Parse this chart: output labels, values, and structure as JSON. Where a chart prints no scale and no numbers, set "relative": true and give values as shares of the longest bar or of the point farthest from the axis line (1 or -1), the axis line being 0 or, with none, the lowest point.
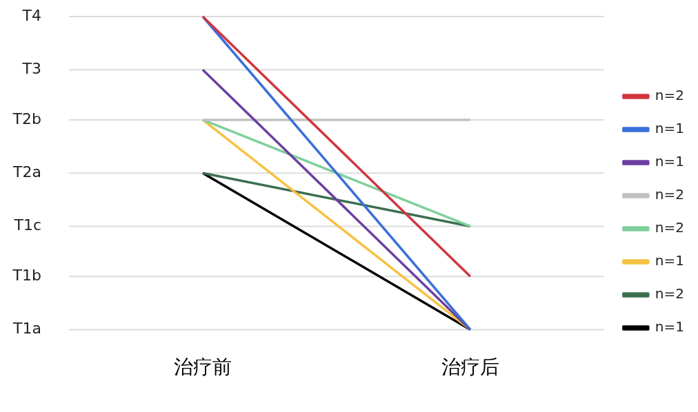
{
  "chart_data": {
    "type": "line",
    "categories": [
      "治疗前",
      "治疗后"
    ],
    "relative": true,
    "ref_lines": [
      {
        "axis": "y",
        "value": 0,
        "label": "T1a",
        "color": "#dcdcdc"
      },
      {
        "axis": "y",
        "value": 0.17,
        "label": "T1b",
        "color": "#dcdcdc"
      },
      {
        "axis": "y",
        "value": 0.33,
        "label": "T1c",
        "color": "#dcdcdc"
      },
      {
        "axis": "y",
        "value": 0.5,
        "label": "T2a",
        "color": "#dcdcdc"
      },
      {
        "axis": "y",
        "value": 0.67,
        "label": "T2b",
        "color": "#dcdcdc"
      },
      {
        "axis": "y",
        "value": 0.83,
        "label": "T3",
        "color": "#dcdcdc"
      },
      {
        "axis": "y",
        "value": 1,
        "label": "T4",
        "color": "#dcdcdc"
      }
    ],
    "legend": "right",
    "marker": "none",
    "line_style": "solid",
    "series": [
      {
        "name": "n=2",
        "color": "#d0363f",
        "values": [
          1,
          0.17
        ]
      },
      {
        "name": "n=1",
        "color": "#3b6fd8",
        "values": [
          1,
          0
        ]
      },
      {
        "name": "n=1",
        "color": "#6a3fa0",
        "values": [
          0.83,
          0
        ]
      },
      {
        "name": "n=2",
        "color": "#c0c0c0",
        "values": [
          0.67,
          0.67
        ]
      },
      {
        "name": "n=2",
        "color": "#7fcf9c",
        "values": [
          0.67,
          0.33
        ]
      },
      {
        "name": "n=1",
        "color": "#f5c242",
        "values": [
          0.67,
          0
        ]
      },
      {
        "name": "n=2",
        "color": "#3b6e4f",
        "values": [
          0.5,
          0.33
        ]
      },
      {
        "name": "n=1",
        "color": "#000000",
        "values": [
          0.5,
          0
        ]
      }
    ]
  }
}
